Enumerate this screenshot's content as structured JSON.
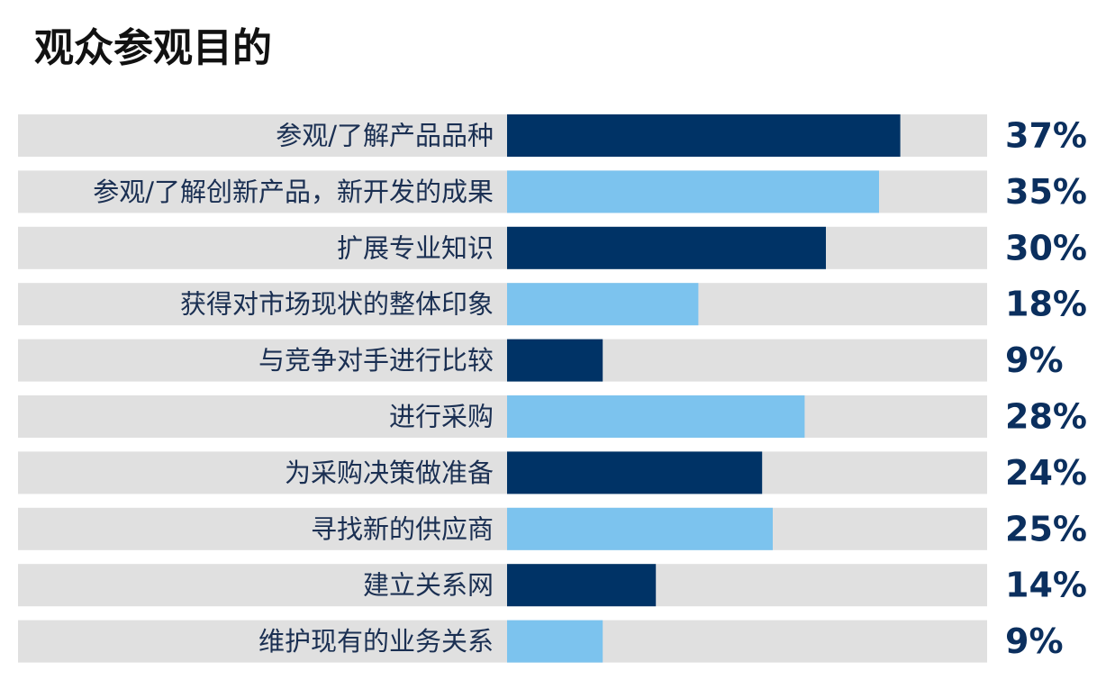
{
  "chart_data": {
    "type": "bar",
    "orientation": "horizontal",
    "title": "观众参观目的",
    "xlabel": "",
    "ylabel": "",
    "xlim": [
      0,
      100
    ],
    "grid": false,
    "legend": "none",
    "value_suffix": "%",
    "categories": [
      "参观/了解产品品种",
      "参观/了解创新产品，新开发的成果",
      "扩展专业知识",
      "获得对市场现状的整体印象",
      "与竞争对手进行比较",
      "进行采购",
      "为采购决策做准备",
      "寻找新的供应商",
      "建立关系网",
      "维护现有的业务关系"
    ],
    "values": [
      37,
      35,
      30,
      18,
      9,
      28,
      24,
      25,
      14,
      9
    ],
    "value_labels": [
      "37%",
      "35%",
      "30%",
      "18%",
      "9%",
      "28%",
      "24%",
      "25%",
      "14%",
      "9%"
    ],
    "colors": {
      "bar_dark": "#003366",
      "bar_light": "#7cc3ee",
      "track": "#e0e0e0",
      "label_text": "#1a2f52",
      "value_text": "#0b2f5e"
    }
  }
}
